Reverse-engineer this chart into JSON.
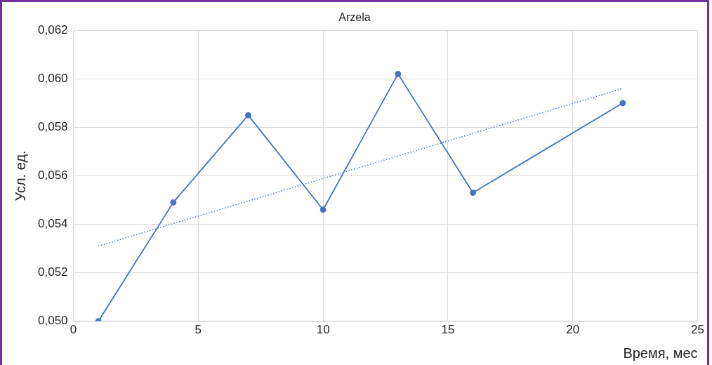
{
  "chart_data": {
    "type": "line",
    "title": "Arzela",
    "xlabel": "Время, мес",
    "ylabel": "Усл. ед.",
    "x": [
      1,
      4,
      7,
      10,
      13,
      16,
      22
    ],
    "series": [
      {
        "color": "#4472c4",
        "values": [
          0.05,
          0.0549,
          0.0585,
          0.0546,
          0.0602,
          0.0553,
          0.059
        ],
        "marker": "circle",
        "line_style": "solid"
      },
      {
        "type": "line",
        "color": "#4472c4",
        "x": [
          1,
          22
        ],
        "values": [
          0.0531,
          0.0596
        ],
        "marker": "none",
        "line_style": "dotted"
      }
    ],
    "xlim": [
      0,
      25
    ],
    "xticks": [
      0,
      5,
      10,
      15,
      20,
      25
    ],
    "ylim": [
      0.05,
      0.062
    ],
    "yticks": [
      {
        "value": 0.05,
        "label": "0,050"
      },
      {
        "value": 0.052,
        "label": "0,052"
      },
      {
        "value": 0.054,
        "label": "0,054"
      },
      {
        "value": 0.056,
        "label": "0,056"
      },
      {
        "value": 0.058,
        "label": "0,058"
      },
      {
        "value": 0.06,
        "label": "0,060"
      },
      {
        "value": 0.062,
        "label": "0,062"
      }
    ],
    "grid": true,
    "legend": false
  }
}
